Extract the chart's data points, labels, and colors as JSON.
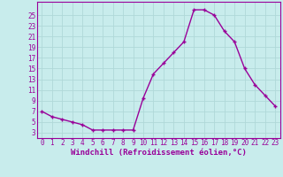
{
  "x": [
    0,
    1,
    2,
    3,
    4,
    5,
    6,
    7,
    8,
    9,
    10,
    11,
    12,
    13,
    14,
    15,
    16,
    17,
    18,
    19,
    20,
    21,
    22,
    23
  ],
  "y": [
    7,
    6,
    5.5,
    5,
    4.5,
    3.5,
    3.5,
    3.5,
    3.5,
    3.5,
    9.5,
    14,
    16,
    18,
    20,
    26,
    26,
    25,
    22,
    20,
    15,
    12,
    10,
    8
  ],
  "line_color": "#990099",
  "marker": "+",
  "marker_size": 3,
  "marker_lw": 1.0,
  "line_width": 1.0,
  "bg_color": "#c8ecec",
  "grid_color": "#b0d8d8",
  "xlabel": "Windchill (Refroidissement éolien,°C)",
  "xlabel_fontsize": 6.5,
  "ytick_labels": [
    "3",
    "5",
    "7",
    "9",
    "11",
    "13",
    "15",
    "17",
    "19",
    "21",
    "23",
    "25"
  ],
  "ytick_vals": [
    3,
    5,
    7,
    9,
    11,
    13,
    15,
    17,
    19,
    21,
    23,
    25
  ],
  "xtick_vals": [
    0,
    1,
    2,
    3,
    4,
    5,
    6,
    7,
    8,
    9,
    10,
    11,
    12,
    13,
    14,
    15,
    16,
    17,
    18,
    19,
    20,
    21,
    22,
    23
  ],
  "xtick_labels": [
    "0",
    "1",
    "2",
    "3",
    "4",
    "5",
    "6",
    "7",
    "8",
    "9",
    "10",
    "11",
    "12",
    "13",
    "14",
    "15",
    "16",
    "17",
    "18",
    "19",
    "20",
    "21",
    "22",
    "23"
  ],
  "ylim": [
    2.0,
    27.5
  ],
  "xlim": [
    -0.5,
    23.5
  ],
  "tick_fontsize": 5.5,
  "tick_color": "#990099"
}
